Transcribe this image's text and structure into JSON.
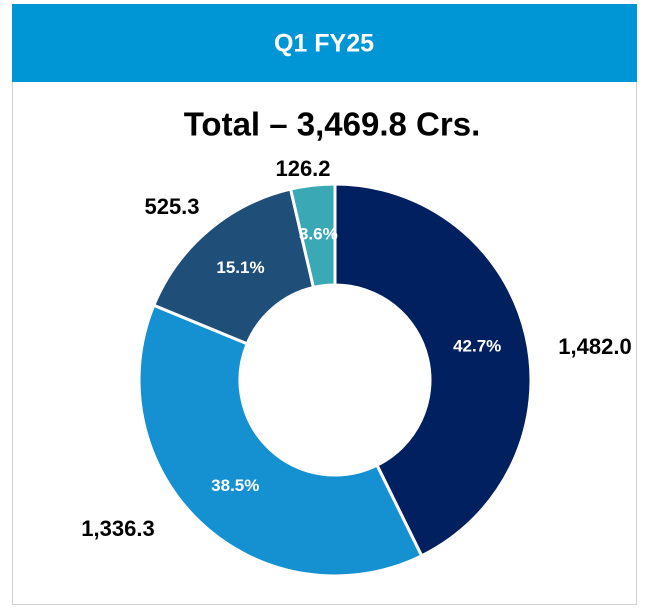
{
  "chart_data": {
    "type": "donut",
    "title": "Q1 FY25",
    "subtitle": "Total – 3,469.8 Crs.",
    "values": [
      1482.0,
      1336.3,
      525.3,
      126.2
    ],
    "value_labels": [
      "1,482.0",
      "1,336.3",
      "525.3",
      "126.2"
    ],
    "percent_labels": [
      "42.7%",
      "38.5%",
      "15.1%",
      "3.6%"
    ],
    "colors": [
      "#002060",
      "#1591d1",
      "#1f4e79",
      "#3aa8b5"
    ]
  }
}
